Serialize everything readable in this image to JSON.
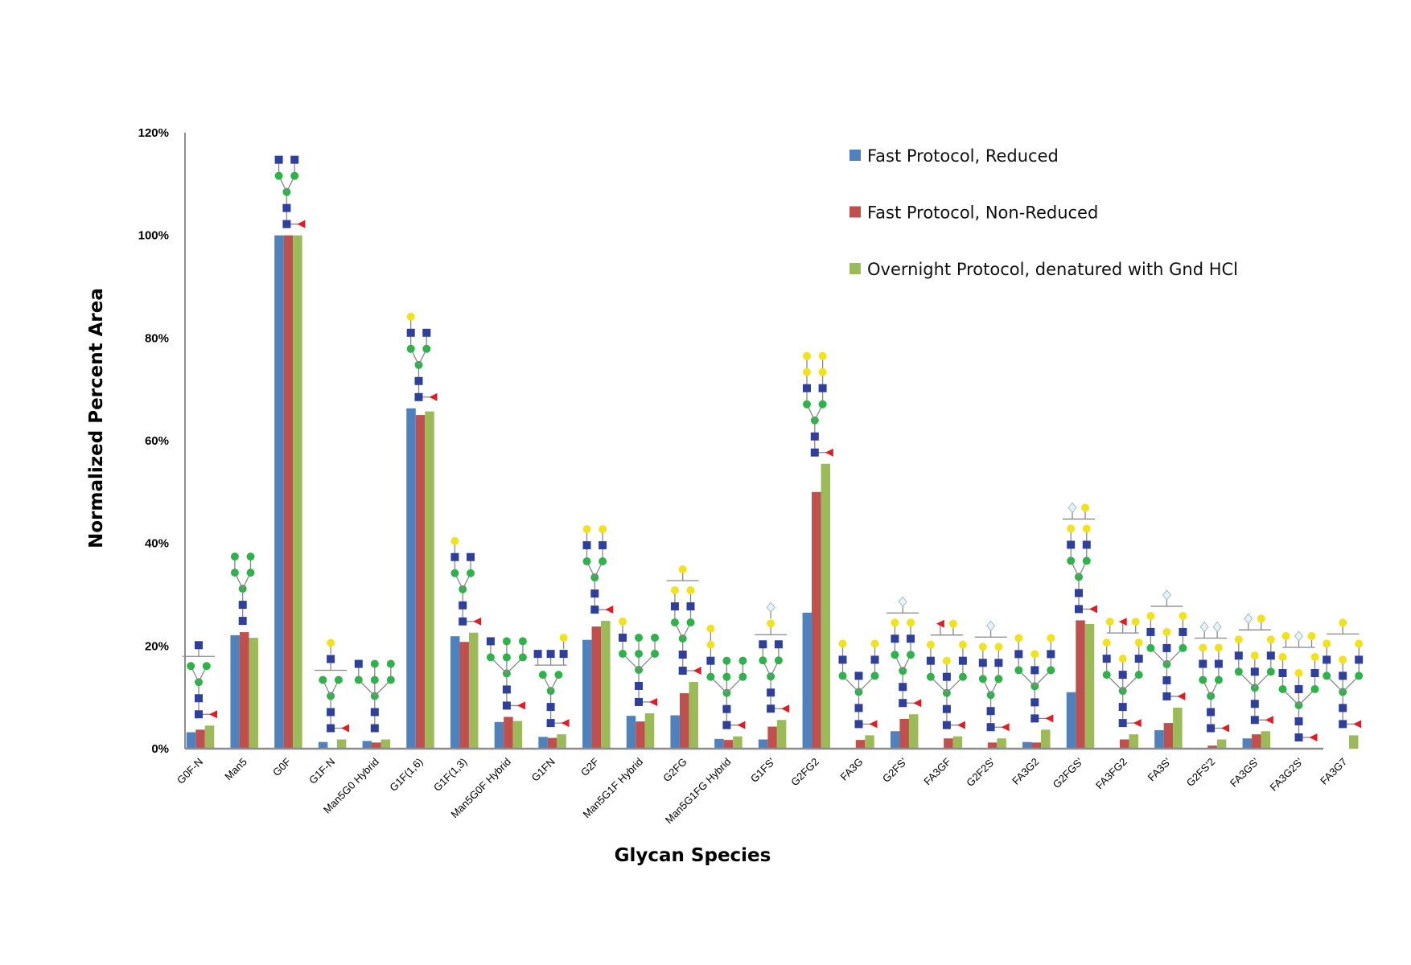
{
  "chart_data": {
    "type": "bar",
    "title": "",
    "xlabel": "Glycan Species",
    "ylabel": "Normalized Percent Area",
    "ylim": [
      0,
      120
    ],
    "yticks": [
      "0%",
      "20%",
      "40%",
      "60%",
      "80%",
      "100%",
      "120%"
    ],
    "grid": false,
    "legend_position": "top-right",
    "categories": [
      "G0F-N",
      "Man5",
      "G0F",
      "G1F-N",
      "Man5G0 Hybrid",
      "G1F(1,6)",
      "G1F(1,3)",
      "Man5G0F Hybrid",
      "G1FN",
      "G2F",
      "Man5G1F Hybrid",
      "G2FG",
      "Man5G1FG Hybrid",
      "G1FS'",
      "G2FG2",
      "FA3G",
      "G2FS'",
      "FA3GF",
      "G2F2S'",
      "FA3G2",
      "G2FGS'",
      "FA3FG2",
      "FA3S'",
      "G2FS'2",
      "FA3GS'",
      "FA3G2S'",
      "FA3G7"
    ],
    "series": [
      {
        "name": "Fast Protocol, Reduced",
        "color": "#4f81bd",
        "values": [
          3.2,
          22.1,
          100,
          1.3,
          1.5,
          66.3,
          21.9,
          5.2,
          2.3,
          21.2,
          6.4,
          6.5,
          1.9,
          1.8,
          26.5,
          0,
          3.4,
          0,
          0,
          1.3,
          11.0,
          0,
          3.6,
          0,
          2.0,
          0,
          0
        ]
      },
      {
        "name": "Fast Protocol, Non-Reduced",
        "color": "#c0504d",
        "values": [
          3.7,
          22.7,
          100,
          0,
          1.2,
          65.0,
          20.8,
          6.2,
          2.1,
          23.8,
          5.3,
          10.8,
          1.7,
          4.3,
          50.0,
          1.7,
          5.8,
          2.0,
          1.2,
          1.2,
          25.0,
          1.8,
          5.0,
          0.6,
          2.8,
          0,
          0
        ]
      },
      {
        "name": "Overnight Protocol, denatured with Gnd HCl",
        "color": "#9bbb59",
        "values": [
          4.5,
          21.6,
          100,
          1.8,
          1.8,
          65.7,
          22.6,
          5.4,
          2.8,
          24.9,
          6.9,
          13.0,
          2.4,
          5.6,
          55.5,
          2.6,
          6.7,
          2.4,
          2.0,
          3.7,
          24.3,
          2.8,
          8.0,
          1.8,
          3.4,
          0,
          2.6
        ]
      }
    ]
  }
}
